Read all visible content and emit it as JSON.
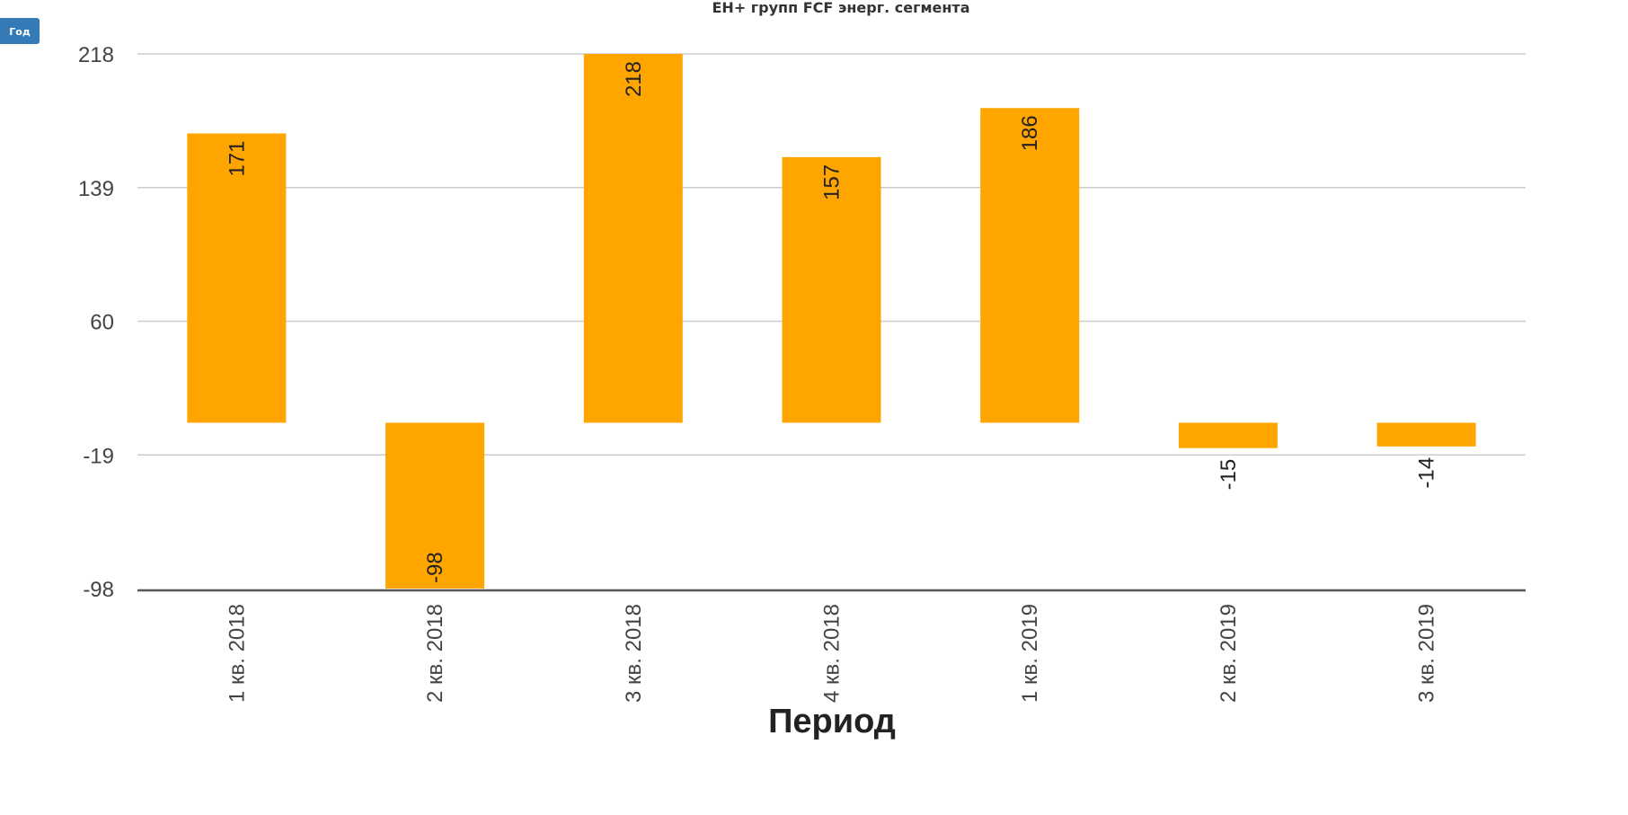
{
  "controls": {
    "period_button_label": "Год"
  },
  "chart_data": {
    "type": "bar",
    "title": "ЕН+ групп FCF энерг. сегмента",
    "xlabel": "Период",
    "ylabel": "",
    "categories": [
      "1 кв. 2018",
      "2 кв. 2018",
      "3 кв. 2018",
      "4 кв. 2018",
      "1 кв. 2019",
      "2 кв. 2019",
      "3 кв. 2019"
    ],
    "values": [
      171,
      -98,
      218,
      157,
      186,
      -15,
      -14
    ],
    "yticks": [
      218,
      139,
      60,
      -19,
      -98
    ],
    "ylim": [
      -98,
      218
    ],
    "grid": true,
    "bar_color": "#ffa500"
  }
}
